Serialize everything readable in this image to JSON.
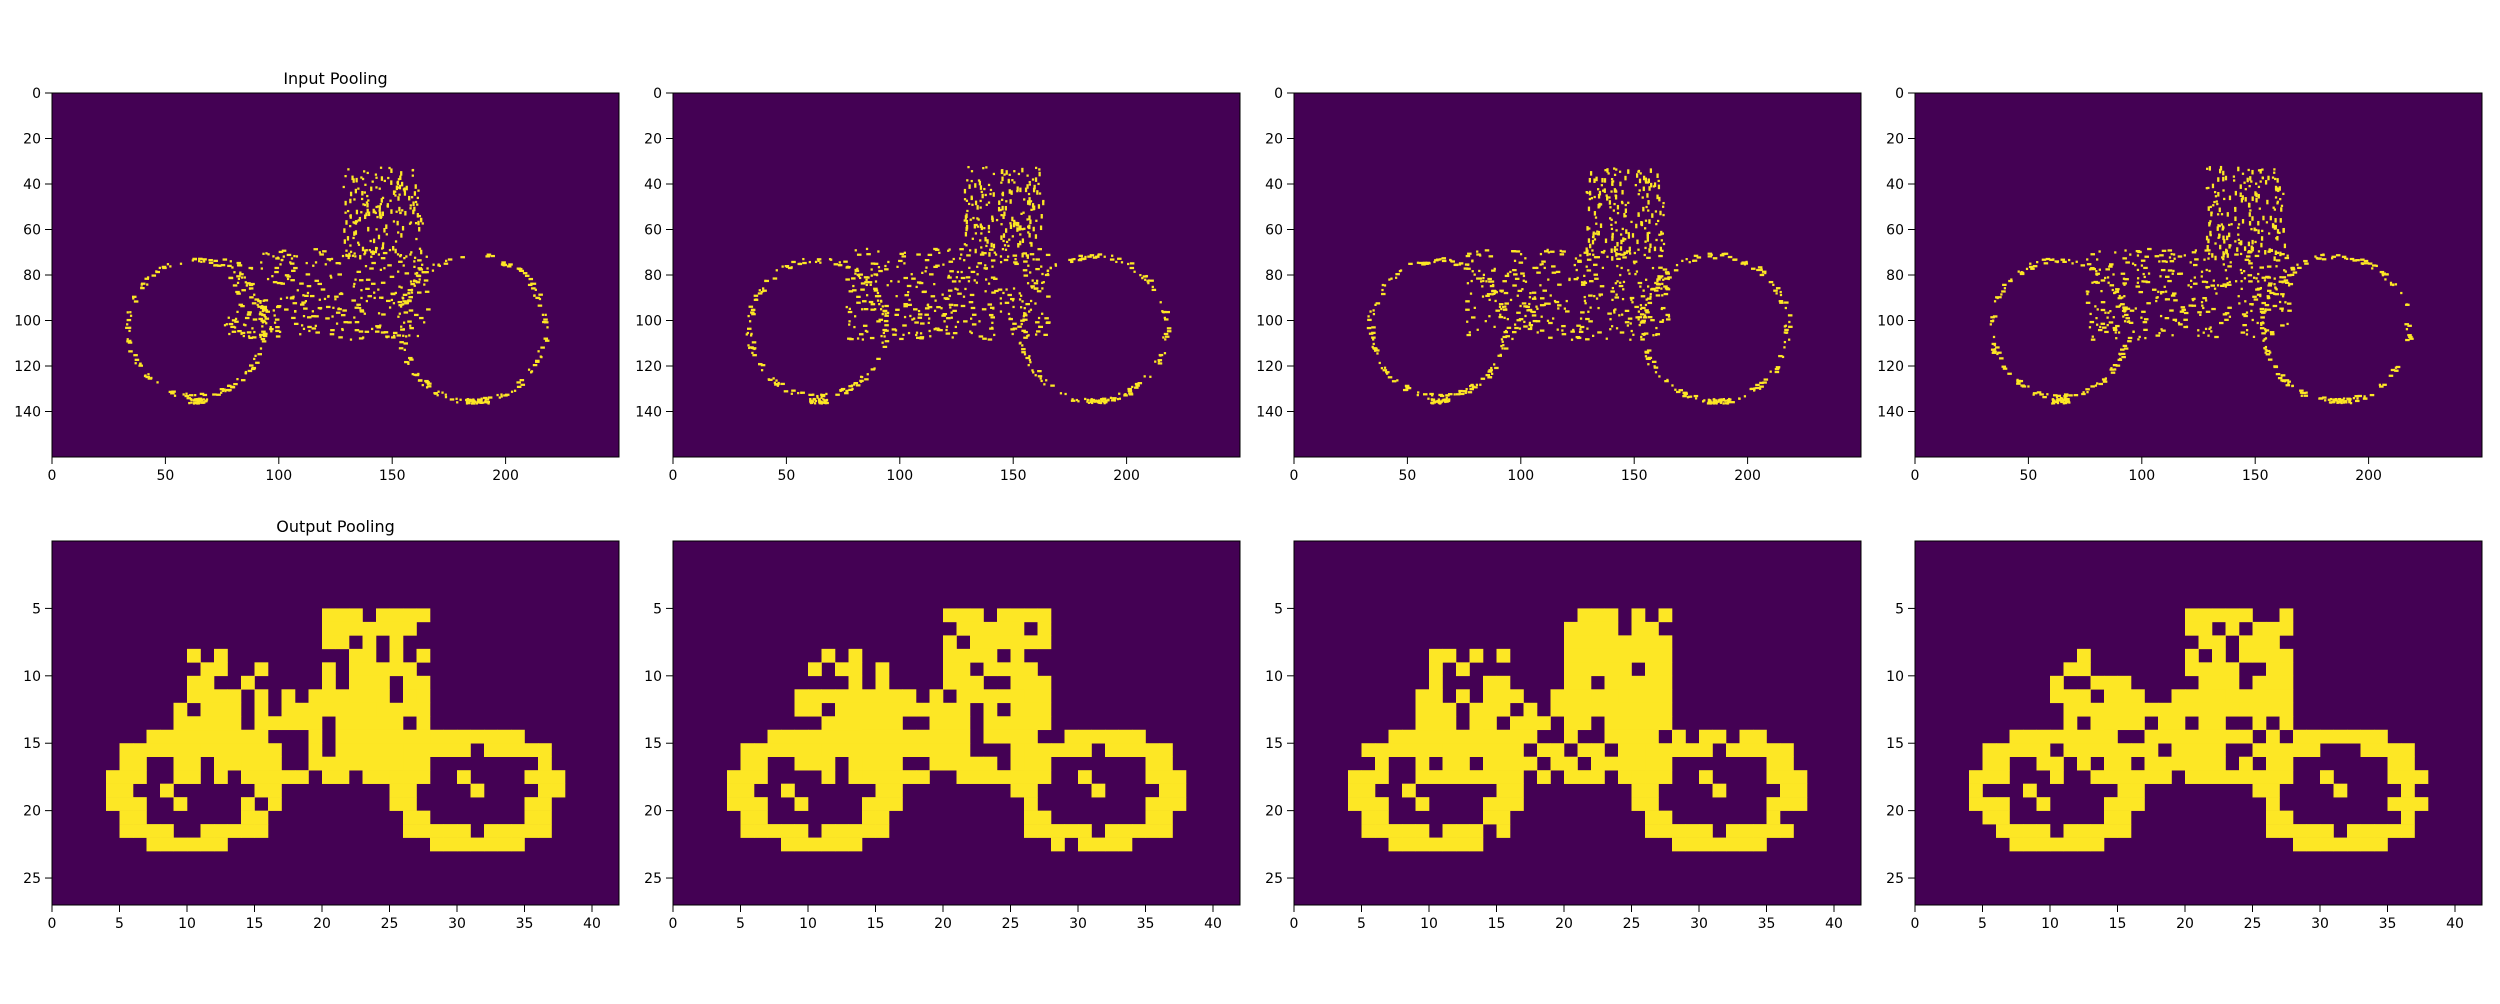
{
  "chart_data": [
    {
      "type": "heatmap",
      "title": "Input Pooling",
      "xlim": [
        0,
        250
      ],
      "ylim": [
        160,
        0
      ],
      "xticks": [
        0,
        50,
        100,
        150,
        200
      ],
      "yticks": [
        0,
        20,
        40,
        60,
        80,
        100,
        120,
        140
      ],
      "colormap": [
        "#440154",
        "#fde725"
      ],
      "shape": "motorcycle edges"
    },
    {
      "type": "heatmap",
      "title": "",
      "xlim": [
        0,
        250
      ],
      "ylim": [
        160,
        0
      ],
      "xticks": [
        0,
        50,
        100,
        150,
        200
      ],
      "yticks": [
        0,
        20,
        40,
        60,
        80,
        100,
        120,
        140
      ],
      "colormap": [
        "#440154",
        "#fde725"
      ],
      "shape": "motorcycle edges"
    },
    {
      "type": "heatmap",
      "title": "",
      "xlim": [
        0,
        250
      ],
      "ylim": [
        160,
        0
      ],
      "xticks": [
        0,
        50,
        100,
        150,
        200
      ],
      "yticks": [
        0,
        20,
        40,
        60,
        80,
        100,
        120,
        140
      ],
      "colormap": [
        "#440154",
        "#fde725"
      ],
      "shape": "motorcycle edges"
    },
    {
      "type": "heatmap",
      "title": "",
      "xlim": [
        0,
        250
      ],
      "ylim": [
        160,
        0
      ],
      "xticks": [
        0,
        50,
        100,
        150,
        200
      ],
      "yticks": [
        0,
        20,
        40,
        60,
        80,
        100,
        120,
        140
      ],
      "colormap": [
        "#440154",
        "#fde725"
      ],
      "shape": "motorcycle edges"
    },
    {
      "type": "heatmap",
      "title": "Output Pooling",
      "xlim": [
        0,
        42
      ],
      "ylim": [
        27,
        0
      ],
      "xticks": [
        0,
        5,
        10,
        15,
        20,
        25,
        30,
        35,
        40
      ],
      "yticks": [
        5,
        10,
        15,
        20,
        25
      ],
      "colormap": [
        "#440154",
        "#fde725"
      ],
      "shape": "motorcycle pooled"
    },
    {
      "type": "heatmap",
      "title": "",
      "xlim": [
        0,
        42
      ],
      "ylim": [
        27,
        0
      ],
      "xticks": [
        0,
        5,
        10,
        15,
        20,
        25,
        30,
        35,
        40
      ],
      "yticks": [
        5,
        10,
        15,
        20,
        25
      ],
      "colormap": [
        "#440154",
        "#fde725"
      ],
      "shape": "motorcycle pooled"
    },
    {
      "type": "heatmap",
      "title": "",
      "xlim": [
        0,
        42
      ],
      "ylim": [
        27,
        0
      ],
      "xticks": [
        0,
        5,
        10,
        15,
        20,
        25,
        30,
        35,
        40
      ],
      "yticks": [
        5,
        10,
        15,
        20,
        25
      ],
      "colormap": [
        "#440154",
        "#fde725"
      ],
      "shape": "motorcycle pooled"
    },
    {
      "type": "heatmap",
      "title": "",
      "xlim": [
        0,
        42
      ],
      "ylim": [
        27,
        0
      ],
      "xticks": [
        0,
        5,
        10,
        15,
        20,
        25,
        30,
        35,
        40
      ],
      "yticks": [
        5,
        10,
        15,
        20,
        25
      ],
      "colormap": [
        "#440154",
        "#fde725"
      ],
      "shape": "motorcycle pooled"
    }
  ]
}
